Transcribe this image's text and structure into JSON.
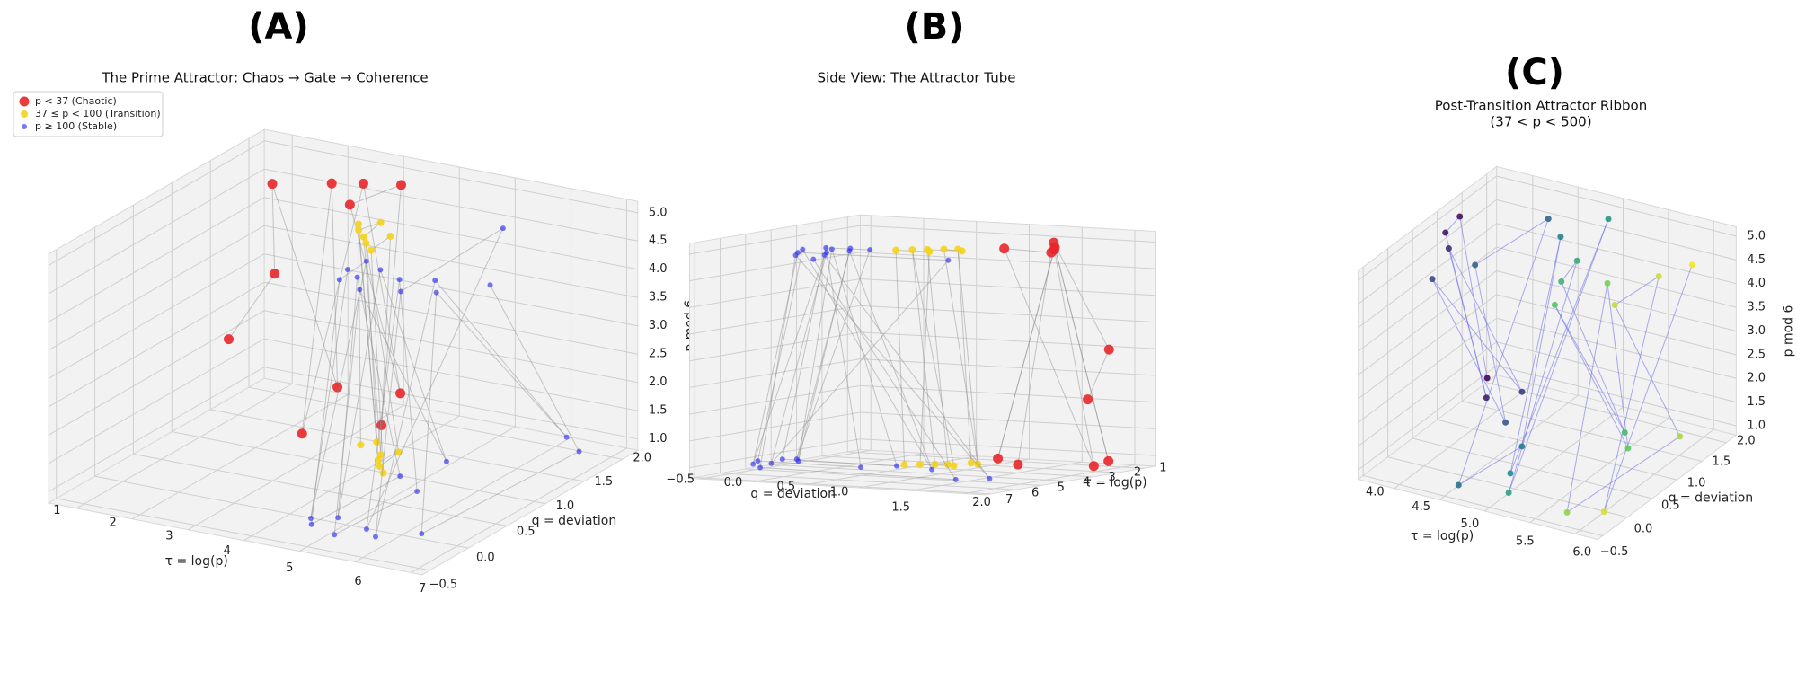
{
  "chart_data": [
    {
      "type": "scatter3d",
      "panel_label": "(A)",
      "title": "The Prime Attractor: Chaos → Gate → Coherence",
      "xlabel": "τ = log(p)",
      "ylabel": "q = deviation",
      "zlabel": "p mod 6",
      "xlim": [
        0.5,
        7.2
      ],
      "ylim": [
        -0.6,
        2.2
      ],
      "zlim": [
        0.8,
        5.2
      ],
      "xticks": [
        1,
        2,
        3,
        4,
        5,
        6,
        7
      ],
      "yticks": [
        {
          "value": -0.5,
          "label": "−0.5"
        },
        {
          "value": 0,
          "label": "0.0"
        },
        0.5,
        {
          "value": 1,
          "label": "1.0"
        },
        1.5,
        {
          "value": 2,
          "label": "2.0"
        }
      ],
      "zticks": [
        {
          "value": 1,
          "label": "1.0"
        },
        1.5,
        {
          "value": 2,
          "label": "2.0"
        },
        2.5,
        {
          "value": 3,
          "label": "3.0"
        },
        3.5,
        {
          "value": 4,
          "label": "4.0"
        },
        4.5,
        {
          "value": 5,
          "label": "5.0"
        }
      ],
      "legend": "upper left",
      "grid": true,
      "series": [
        {
          "name": "p < 37 (Chaotic)",
          "color": "#e8262a",
          "x": [
            0.69,
            1.1,
            1.61,
            1.95,
            2.4,
            2.56,
            2.83,
            2.94,
            3.14,
            3.37,
            3.43
          ],
          "y": [
            1.6,
            1.9,
            1.5,
            2.1,
            1.7,
            1.2,
            1.8,
            2.2,
            1.4,
            1.9,
            1.6
          ],
          "z": [
            2,
            3,
            5,
            1,
            5,
            1,
            5,
            1,
            5,
            5,
            1
          ]
        },
        {
          "name": "37 ≤ p < 100 (Transition)",
          "color": "#f5d21a",
          "x": [
            3.61,
            3.71,
            3.76,
            3.85,
            3.97,
            4.08,
            4.11,
            4.2,
            4.26,
            4.29,
            4.37,
            4.42,
            4.49,
            4.57
          ],
          "y": [
            1.2,
            1.1,
            1.3,
            1.0,
            1.2,
            0.9,
            1.1,
            1.0,
            0.8,
            1.2,
            0.9,
            1.0,
            0.7,
            0.8
          ],
          "z": [
            1,
            5,
            1,
            5,
            5,
            5,
            1,
            1,
            5,
            1,
            1,
            5,
            5,
            1
          ]
        },
        {
          "name": "p ≥ 100 (Stable)",
          "color": "#2f2ff0",
          "x": [
            4.62,
            4.65,
            4.68,
            4.75,
            4.8,
            4.87,
            4.93,
            5.0,
            5.07,
            5.15,
            5.25,
            5.35,
            5.45,
            5.55,
            5.65,
            5.75,
            5.85,
            5.95,
            6.05,
            6.2,
            6.35,
            6.5,
            6.7,
            6.9
          ],
          "y": [
            0.3,
            -0.2,
            0.5,
            0.1,
            -0.3,
            0.8,
            0.2,
            -0.1,
            0.4,
            1.2,
            0.0,
            -0.4,
            0.6,
            0.3,
            -0.2,
            1.5,
            0.1,
            -0.3,
            0.4,
            2.0,
            0.2,
            -0.1,
            1.8,
            0.5
          ],
          "z": [
            5,
            1,
            5,
            5,
            1,
            1,
            5,
            1,
            5,
            1,
            5,
            1,
            1,
            5,
            1,
            5,
            5,
            1,
            5,
            1,
            5,
            1,
            1,
            5
          ]
        }
      ]
    },
    {
      "type": "scatter3d",
      "panel_label": "(B)",
      "title": "Side View: The Attractor Tube",
      "xlabel": "τ = log(p)",
      "ylabel": "q = deviation",
      "xlim": [
        0.5,
        7.2
      ],
      "ylim": [
        -0.6,
        2.2
      ],
      "zlim": [
        0.8,
        5.2
      ],
      "xticks": [
        1,
        2,
        3,
        4,
        5,
        6,
        7
      ],
      "yticks": [
        {
          "value": -0.5,
          "label": "−0.5"
        },
        {
          "value": 0,
          "label": "0.0"
        },
        0.5,
        {
          "value": 1,
          "label": "1.0"
        },
        1.5,
        {
          "value": 2,
          "label": "2.0"
        }
      ],
      "zticks": [
        1,
        1.5,
        2,
        2.5,
        3,
        3.5,
        4,
        4.5,
        5
      ],
      "ztick_labels": false,
      "grid": true,
      "series": [
        {
          "color": "#e8262a",
          "x": [
            0.69,
            1.1,
            1.61,
            1.95,
            2.4,
            2.56,
            2.83,
            2.94,
            3.14,
            3.37,
            3.43
          ],
          "y": [
            1.6,
            1.9,
            1.5,
            2.1,
            1.7,
            1.2,
            1.8,
            2.2,
            1.4,
            1.9,
            1.6
          ],
          "z": [
            2,
            3,
            5,
            1,
            5,
            1,
            5,
            1,
            5,
            5,
            1
          ]
        },
        {
          "color": "#f5d21a",
          "x": [
            3.61,
            3.71,
            3.76,
            3.85,
            3.97,
            4.08,
            4.11,
            4.2,
            4.26,
            4.29,
            4.37,
            4.42,
            4.49,
            4.57
          ],
          "y": [
            1.2,
            1.1,
            1.3,
            1.0,
            1.2,
            0.9,
            1.1,
            1.0,
            0.8,
            1.2,
            0.9,
            1.0,
            0.7,
            0.8
          ],
          "z": [
            1,
            5,
            1,
            5,
            5,
            5,
            1,
            1,
            5,
            1,
            1,
            5,
            5,
            1
          ]
        },
        {
          "color": "#2f2ff0",
          "x": [
            4.62,
            4.65,
            4.68,
            4.75,
            4.8,
            4.87,
            4.93,
            5.0,
            5.07,
            5.15,
            5.25,
            5.35,
            5.45,
            5.55,
            5.65,
            5.75,
            5.85,
            5.95,
            6.05,
            6.2,
            6.35,
            6.5,
            6.7,
            6.9
          ],
          "y": [
            0.3,
            -0.2,
            0.5,
            0.1,
            -0.3,
            0.8,
            0.2,
            -0.1,
            0.4,
            1.2,
            0.0,
            -0.4,
            0.6,
            0.3,
            -0.2,
            1.5,
            0.1,
            -0.3,
            0.4,
            2.0,
            0.2,
            -0.1,
            1.8,
            0.5
          ],
          "z": [
            5,
            1,
            5,
            5,
            1,
            1,
            5,
            1,
            5,
            1,
            5,
            1,
            1,
            5,
            1,
            5,
            5,
            1,
            5,
            1,
            5,
            1,
            1,
            5
          ]
        }
      ]
    },
    {
      "type": "scatter3d",
      "panel_label": "(C)",
      "title": "Post-Transition Attractor Ribbon",
      "subtitle": "(37 < p < 500)",
      "xlabel": "τ = log(p)",
      "ylabel": "q = deviation",
      "zlabel": "p mod 6",
      "xlim": [
        3.6,
        6.25
      ],
      "ylim": [
        -0.6,
        2.2
      ],
      "zlim": [
        0.8,
        5.2
      ],
      "xticks": [
        {
          "value": 4,
          "label": "4.0"
        },
        4.5,
        {
          "value": 5,
          "label": "5.0"
        },
        5.5,
        {
          "value": 6,
          "label": "6.0"
        }
      ],
      "yticks": [
        {
          "value": -0.5,
          "label": "−0.5"
        },
        {
          "value": 0,
          "label": "0.0"
        },
        0.5,
        {
          "value": 1,
          "label": "1.0"
        },
        1.5,
        {
          "value": 2,
          "label": "2.0"
        }
      ],
      "zticks": [
        {
          "value": 1,
          "label": "1.0"
        },
        1.5,
        {
          "value": 2,
          "label": "2.0"
        },
        2.5,
        {
          "value": 3,
          "label": "3.0"
        },
        3.5,
        {
          "value": 4,
          "label": "4.0"
        },
        4.5,
        {
          "value": 5,
          "label": "5.0"
        }
      ],
      "grid": true,
      "line_color": "#6a6aea",
      "series": [
        {
          "colormap": "viridis",
          "x": [
            3.66,
            3.74,
            3.8,
            3.87,
            4.0,
            4.1,
            4.2,
            4.3,
            4.4,
            4.5,
            4.6,
            4.7,
            4.8,
            4.9,
            5.0,
            5.1,
            5.2,
            5.3,
            5.4,
            5.5,
            5.6,
            5.7,
            5.8,
            5.9,
            6.0,
            6.05,
            6.1,
            6.2
          ],
          "y": [
            1.9,
            1.2,
            0.8,
            1.5,
            0.5,
            1.8,
            -0.2,
            1.1,
            0.3,
            1.6,
            -0.4,
            0.7,
            1.3,
            0.1,
            1.9,
            -0.3,
            0.9,
            0.4,
            1.5,
            -0.1,
            1.2,
            0.6,
            -0.4,
            1.7,
            0.2,
            1.0,
            -0.2,
            1.4
          ],
          "z": [
            1,
            5,
            5,
            1,
            5,
            1,
            5,
            1,
            5,
            5,
            1,
            1,
            5,
            1,
            5,
            1,
            5,
            5,
            1,
            5,
            1,
            5,
            1,
            1,
            5,
            5,
            1,
            5
          ]
        }
      ]
    }
  ]
}
